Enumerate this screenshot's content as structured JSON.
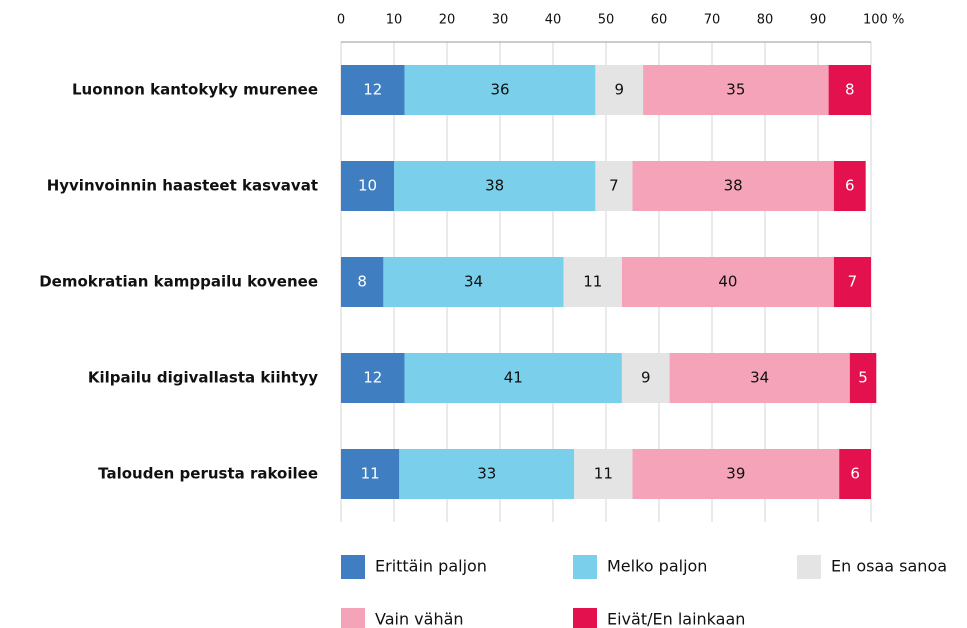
{
  "chart_data": {
    "type": "bar",
    "orientation": "horizontal",
    "stacked": true,
    "categories": [
      "Luonnon kantokyky murenee",
      "Hyvinvoinnin haasteet kasvavat",
      "Demokratian kamppailu kovenee",
      "Kilpailu digivallasta kiihtyy",
      "Talouden perusta rakoilee"
    ],
    "series": [
      {
        "name": "Erittäin paljon",
        "color": "#3f7fc1",
        "values": [
          12,
          10,
          8,
          12,
          11
        ]
      },
      {
        "name": "Melko paljon",
        "color": "#7acfea",
        "values": [
          36,
          38,
          34,
          41,
          33
        ]
      },
      {
        "name": "En osaa sanoa",
        "color": "#e4e4e4",
        "values": [
          9,
          7,
          11,
          9,
          11
        ]
      },
      {
        "name": "Vain vähän",
        "color": "#f4a3b8",
        "values": [
          35,
          38,
          40,
          34,
          39
        ]
      },
      {
        "name": "Eivät/En lainkaan",
        "color": "#e3114e",
        "values": [
          8,
          6,
          7,
          5,
          6
        ]
      }
    ],
    "xlim": [
      0,
      100
    ],
    "xticks": [
      0,
      10,
      20,
      30,
      40,
      50,
      60,
      70,
      80,
      90,
      {
        "value": 100,
        "label": "100 %"
      }
    ],
    "grid": true,
    "legend": "bottom"
  }
}
